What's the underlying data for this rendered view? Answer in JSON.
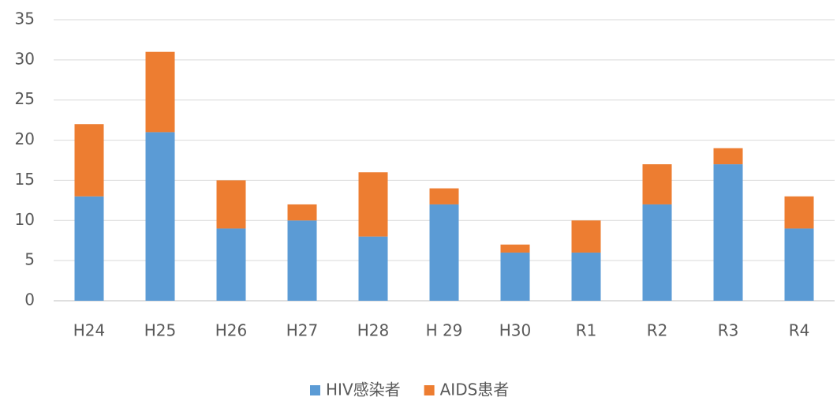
{
  "chart_data": {
    "type": "stacked_bar",
    "categories": [
      "H24",
      "H25",
      "H26",
      "H27",
      "H28",
      "H 29",
      "H30",
      "R1",
      "R2",
      "R3",
      "R4"
    ],
    "series": [
      {
        "name": "HIV感染者",
        "color": "#5b9bd5",
        "values": [
          13,
          21,
          9,
          10,
          8,
          12,
          6,
          6,
          12,
          17,
          9
        ]
      },
      {
        "name": "AIDS患者",
        "color": "#ed7d31",
        "values": [
          9,
          10,
          6,
          2,
          8,
          2,
          1,
          4,
          5,
          2,
          4
        ]
      }
    ],
    "ylim": [
      0,
      35
    ],
    "yticks": [
      0,
      5,
      10,
      15,
      20,
      25,
      30,
      35
    ],
    "grid": true,
    "legend": "bottom"
  }
}
